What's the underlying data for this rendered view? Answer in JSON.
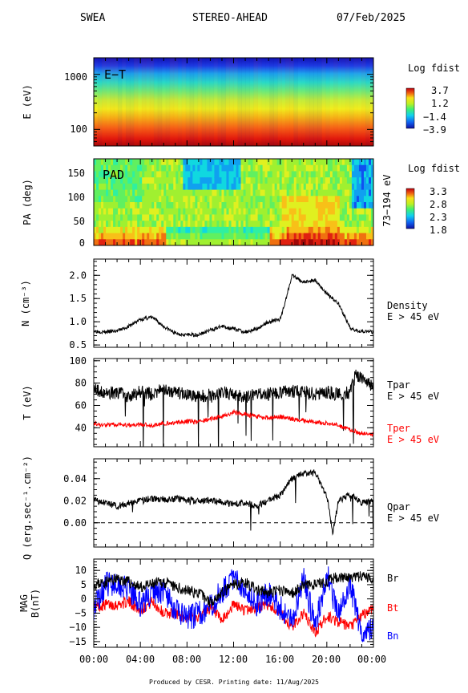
{
  "header": {
    "instrument": "SWEA",
    "spacecraft": "STEREO-AHEAD",
    "date": "07/Feb/2025"
  },
  "footer": {
    "text": "Produced by CESR.   Printing date: 11/Aug/2025"
  },
  "x_axis": {
    "tick_labels": [
      "00:00",
      "04:00",
      "08:00",
      "12:00",
      "16:00",
      "20:00",
      "00:00"
    ]
  },
  "colors": {
    "black": "#000000",
    "red": "#ff0000",
    "blue": "#0000ff"
  },
  "panels": {
    "et": {
      "inner_label": "E−T",
      "ylabel": "E (eV)",
      "yticks": [
        "1000",
        "100"
      ],
      "colorbar_title": "Log fdist",
      "colorbar_ticks": [
        "3.7",
        "1.2",
        "−1.4",
        "−3.9"
      ]
    },
    "pad": {
      "inner_label": "PAD",
      "ylabel": "PA (deg)",
      "yticks": [
        "150",
        "100",
        "50",
        "0"
      ],
      "right_label": "73−194 eV",
      "colorbar_title": "Log fdist",
      "colorbar_ticks": [
        "3.3",
        "2.8",
        "2.3",
        "1.8"
      ]
    },
    "density": {
      "ylabel": "N (cm⁻³)",
      "yticks": [
        "2.0",
        "1.5",
        "1.0",
        "0.5"
      ],
      "legend": [
        "Density",
        "E > 45 eV"
      ]
    },
    "temp": {
      "ylabel": "T (eV)",
      "yticks": [
        "100",
        "80",
        "60",
        "40"
      ],
      "legend_black": [
        "Tpar",
        "E > 45 eV"
      ],
      "legend_red": [
        "Tper",
        "E > 45 eV"
      ]
    },
    "heat": {
      "ylabel": "Q (erg.sec⁻¹.cm⁻²)",
      "yticks": [
        "0.04",
        "0.02",
        "0.00"
      ],
      "legend": [
        "Qpar",
        "E > 45 eV"
      ]
    },
    "mag": {
      "ylabel1": "MAG",
      "ylabel2": "B(nT)",
      "yticks": [
        "10",
        "5",
        "0",
        "−5",
        "−10",
        "−15"
      ],
      "legend": [
        "Br",
        "Bt",
        "Bn"
      ]
    }
  },
  "chart_data": [
    {
      "type": "heatmap",
      "title": "E−T",
      "x": "time (hours, 00:00–24:00)",
      "ylabel": "E (eV)",
      "ylog": true,
      "ylim": [
        50,
        2000
      ],
      "colorbar": "Log fdist",
      "clim": [
        -3.9,
        3.7
      ]
    },
    {
      "type": "heatmap",
      "title": "PAD",
      "ylabel": "PA (deg)",
      "ylim": [
        0,
        180
      ],
      "colorbar": "Log fdist",
      "clim": [
        1.8,
        3.3
      ]
    },
    {
      "type": "line",
      "ylabel": "N (cm⁻³)",
      "ylim": [
        0.45,
        2.35
      ],
      "series": [
        {
          "name": "Density",
          "x": [
            0,
            1,
            2,
            3,
            4,
            5,
            6,
            7,
            8,
            9,
            10,
            11,
            12,
            13,
            14,
            15,
            16,
            16.5,
            17,
            18,
            19,
            20,
            21,
            22,
            23,
            24
          ],
          "y": [
            0.8,
            0.78,
            0.8,
            0.9,
            1.05,
            1.1,
            0.9,
            0.75,
            0.72,
            0.72,
            0.82,
            0.9,
            0.85,
            0.78,
            0.85,
            1.0,
            1.05,
            1.5,
            2.0,
            1.85,
            1.9,
            1.6,
            1.4,
            0.85,
            0.8,
            0.78
          ]
        }
      ]
    },
    {
      "type": "line",
      "ylabel": "T (eV)",
      "ylim": [
        23,
        102
      ],
      "series": [
        {
          "name": "Tpar",
          "x": [
            0,
            1,
            2,
            3,
            4,
            5,
            6,
            7,
            8,
            9,
            10,
            11,
            12,
            13,
            14,
            15,
            16,
            17,
            18,
            19,
            20,
            21,
            22,
            22.5,
            23,
            24
          ],
          "y": [
            75,
            70,
            72,
            68,
            72,
            70,
            75,
            72,
            70,
            68,
            70,
            72,
            70,
            68,
            70,
            70,
            72,
            73,
            72,
            70,
            72,
            70,
            72,
            88,
            85,
            75
          ]
        },
        {
          "name": "Tper",
          "x": [
            0,
            1,
            2,
            3,
            4,
            5,
            6,
            7,
            8,
            9,
            10,
            11,
            12,
            13,
            14,
            15,
            16,
            17,
            18,
            19,
            20,
            21,
            22,
            23,
            24
          ],
          "y": [
            44,
            42,
            43,
            42,
            43,
            42,
            44,
            44,
            46,
            45,
            48,
            50,
            54,
            52,
            50,
            49,
            50,
            48,
            46,
            45,
            44,
            42,
            38,
            35,
            34
          ]
        }
      ]
    },
    {
      "type": "line",
      "ylabel": "Q (erg.sec⁻¹.cm⁻²)",
      "ylim": [
        -0.022,
        0.058
      ],
      "series": [
        {
          "name": "Qpar",
          "x": [
            0,
            1,
            2,
            3,
            4,
            5,
            6,
            7,
            8,
            9,
            10,
            11,
            12,
            13,
            14,
            15,
            16,
            17,
            18,
            19,
            20,
            20.5,
            21,
            22,
            23,
            24
          ],
          "y": [
            0.02,
            0.018,
            0.015,
            0.018,
            0.02,
            0.022,
            0.021,
            0.022,
            0.021,
            0.02,
            0.02,
            0.019,
            0.017,
            0.018,
            0.015,
            0.02,
            0.025,
            0.04,
            0.045,
            0.045,
            0.025,
            -0.01,
            0.02,
            0.025,
            0.018,
            0.02
          ]
        }
      ]
    },
    {
      "type": "line",
      "ylabel": "B(nT)",
      "ylim": [
        -17,
        14
      ],
      "series": [
        {
          "name": "Br",
          "x": [
            0,
            1,
            2,
            3,
            4,
            5,
            6,
            7,
            8,
            9,
            10,
            11,
            12,
            13,
            14,
            15,
            16,
            17,
            18,
            19,
            20,
            21,
            22,
            23,
            24
          ],
          "y": [
            5,
            6,
            7,
            6,
            4,
            5,
            6,
            4,
            3,
            2,
            -1,
            2,
            5,
            6,
            3,
            2,
            3,
            2,
            5,
            5,
            6,
            8,
            7,
            8,
            7
          ]
        },
        {
          "name": "Bt",
          "x": [
            0,
            1,
            2,
            3,
            4,
            5,
            6,
            7,
            8,
            9,
            10,
            11,
            12,
            13,
            14,
            15,
            16,
            17,
            18,
            19,
            20,
            21,
            22,
            23,
            24
          ],
          "y": [
            -3,
            -2,
            -2,
            -1,
            -4,
            -1,
            -5,
            -5,
            -7,
            -6,
            -3,
            -8,
            -2,
            -4,
            -3,
            -2,
            -5,
            -10,
            -5,
            -12,
            -6,
            -8,
            -10,
            -6,
            -3
          ]
        },
        {
          "name": "Bn",
          "x": [
            0,
            1,
            2,
            3,
            4,
            5,
            6,
            7,
            8,
            9,
            10,
            11,
            12,
            13,
            14,
            15,
            16,
            17,
            18,
            19,
            20,
            21,
            22,
            23,
            24
          ],
          "y": [
            -3,
            5,
            6,
            3,
            -2,
            2,
            3,
            -4,
            -7,
            -5,
            -3,
            3,
            7,
            4,
            -2,
            2,
            -3,
            -8,
            8,
            -10,
            9,
            -6,
            5,
            -12,
            -10
          ]
        }
      ]
    }
  ]
}
